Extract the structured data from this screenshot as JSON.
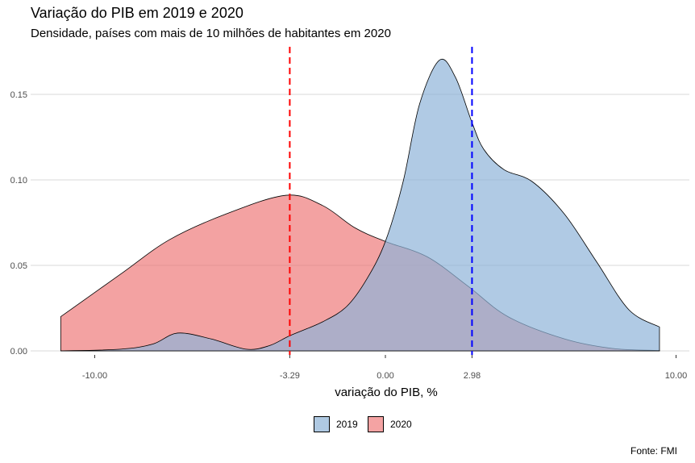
{
  "chart_data": {
    "type": "area",
    "title": "Variação do PIB em 2019 e 2020",
    "subtitle": "Densidade, países com mais de 10 milhões de habitantes em 2020",
    "xlabel": "variação do PIB, %",
    "ylabel": "",
    "caption": "Fonte: FMI",
    "xlim": [
      -11.3,
      10
    ],
    "ylim": [
      0,
      0.17
    ],
    "x_ticks": [
      -10,
      -3.29,
      0,
      2.98,
      10
    ],
    "x_tick_labels": [
      "-10.00",
      "-3.29",
      "0.00",
      "2.98",
      "10.00"
    ],
    "y_ticks": [
      0,
      0.05,
      0.1,
      0.15
    ],
    "y_tick_labels": [
      "0.00",
      "0.05",
      "0.10",
      "0.15"
    ],
    "grid": "horizontal",
    "legend_position": "bottom",
    "series": [
      {
        "name": "2019",
        "color": "#a6c4e0",
        "mean_line": 2.98,
        "mean_color": "#0000ff",
        "x": [
          -11.17,
          -9.1,
          -8.0,
          -7.15,
          -6.0,
          -4.8,
          -4.0,
          -3.27,
          -2.16,
          -1.33,
          -0.64,
          0,
          0.61,
          1.17,
          1.86,
          2.41,
          2.97,
          3.38,
          4.08,
          5.05,
          6.16,
          7.27,
          8.38,
          9.43
        ],
        "y": [
          0,
          0.001,
          0.004,
          0.0104,
          0.007,
          0.001,
          0.003,
          0.009,
          0.017,
          0.026,
          0.042,
          0.064,
          0.099,
          0.144,
          0.17,
          0.16,
          0.134,
          0.118,
          0.106,
          0.099,
          0.08,
          0.052,
          0.024,
          0.014
        ]
      },
      {
        "name": "2020",
        "color": "#f08080",
        "mean_line": -3.29,
        "mean_color": "#ff0000",
        "x": [
          -11.17,
          -9.1,
          -7.43,
          -5.49,
          -3.41,
          -2.16,
          -1.05,
          0,
          1.44,
          2.83,
          4.22,
          6.16,
          7.82,
          9.43
        ],
        "y": [
          0.02,
          0.045,
          0.065,
          0.08,
          0.091,
          0.085,
          0.072,
          0.064,
          0.055,
          0.038,
          0.02,
          0.007,
          0.0014,
          0.0002
        ]
      }
    ]
  }
}
